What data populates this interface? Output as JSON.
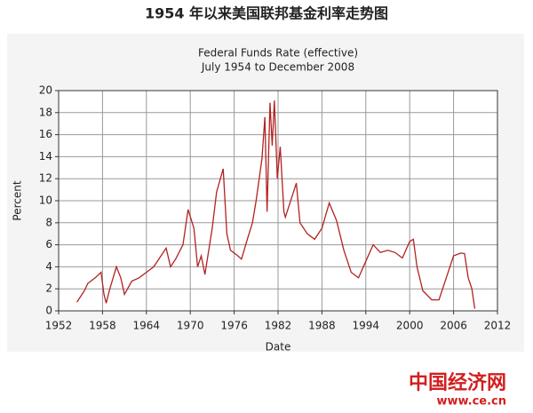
{
  "header": {
    "title": "1954 年以来美国联邦基金利率走势图"
  },
  "chart_data": {
    "type": "line",
    "title": "Federal Funds Rate (effective)",
    "subtitle": "July 1954 to December 2008",
    "x_label": "Date",
    "y_label": "Percent",
    "x": [
      1954.5,
      1955,
      1955.5,
      1956,
      1957,
      1957.8,
      1958.2,
      1958.5,
      1959,
      1959.9,
      1960.5,
      1961,
      1962,
      1963,
      1964,
      1965,
      1966,
      1966.7,
      1967.3,
      1968,
      1969,
      1969.7,
      1970.5,
      1971,
      1971.5,
      1972,
      1973,
      1973.6,
      1974.5,
      1975,
      1975.5,
      1976.5,
      1977,
      1977.8,
      1978.5,
      1979,
      1979.8,
      1980.2,
      1980.5,
      1980.9,
      1981.2,
      1981.5,
      1981.9,
      1982.3,
      1982.8,
      1983,
      1984.5,
      1985,
      1986,
      1987,
      1988,
      1989,
      1990,
      1991,
      1992,
      1993,
      1994,
      1995,
      1996,
      1997,
      1998,
      1999,
      2000,
      2000.5,
      2001,
      2001.8,
      2002,
      2003,
      2004,
      2005,
      2006,
      2007,
      2007.5,
      2008,
      2008.5,
      2008.9
    ],
    "values": [
      0.8,
      1.3,
      1.8,
      2.5,
      3.0,
      3.5,
      1.5,
      0.7,
      2.0,
      4.0,
      3.0,
      1.5,
      2.7,
      3.0,
      3.5,
      4.0,
      5.0,
      5.7,
      4.0,
      4.7,
      6.0,
      9.2,
      7.5,
      4.0,
      5.0,
      3.3,
      7.5,
      10.8,
      12.9,
      7.0,
      5.5,
      5.0,
      4.7,
      6.5,
      8.0,
      10.0,
      13.8,
      17.6,
      9.0,
      18.9,
      15.0,
      19.1,
      12.0,
      14.9,
      9.0,
      8.5,
      11.6,
      8.0,
      7.0,
      6.5,
      7.5,
      9.8,
      8.2,
      5.5,
      3.5,
      3.0,
      4.5,
      6.0,
      5.3,
      5.5,
      5.3,
      4.8,
      6.3,
      6.5,
      4.0,
      1.8,
      1.7,
      1.0,
      1.0,
      3.0,
      5.0,
      5.25,
      5.2,
      3.0,
      2.0,
      0.2
    ],
    "color": "#b22222",
    "xlim": [
      1952,
      2012
    ],
    "xticks": [
      1952,
      1958,
      1964,
      1970,
      1976,
      1982,
      1988,
      1994,
      2000,
      2006,
      2012
    ],
    "ylim": [
      0,
      20
    ],
    "yticks": [
      0,
      2,
      4,
      6,
      8,
      10,
      12,
      14,
      16,
      18,
      20
    ],
    "grid": true
  },
  "watermark": {
    "brand": "中国经济网",
    "url": "www.ce.cn"
  }
}
